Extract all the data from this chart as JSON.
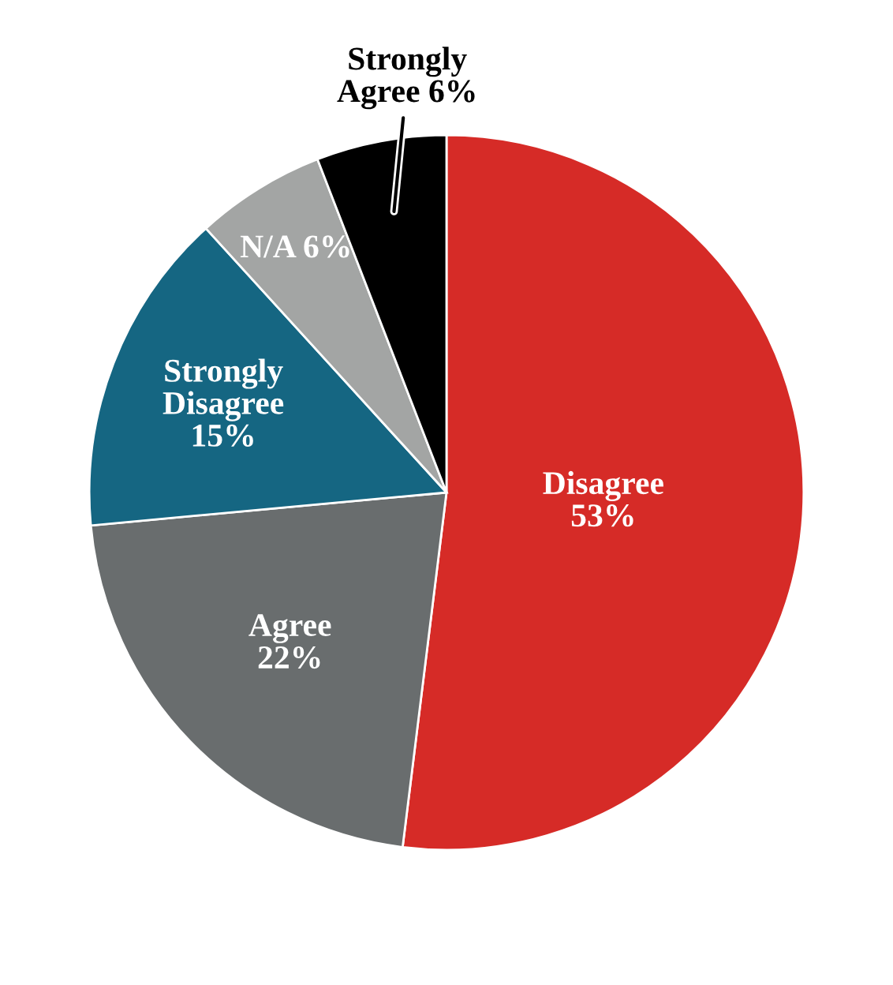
{
  "chart_data": {
    "type": "pie",
    "categories": [
      "Disagree",
      "Agree",
      "Strongly Disagree",
      "N/A",
      "Strongly Agree"
    ],
    "values": [
      53,
      22,
      15,
      6,
      6
    ],
    "value_labels": [
      "53%",
      "22%",
      "15%",
      "6%",
      "6%"
    ],
    "colors": [
      "#d62b27",
      "#696d6e",
      "#156682",
      "#a3a5a4",
      "#000000"
    ],
    "legend": false
  }
}
